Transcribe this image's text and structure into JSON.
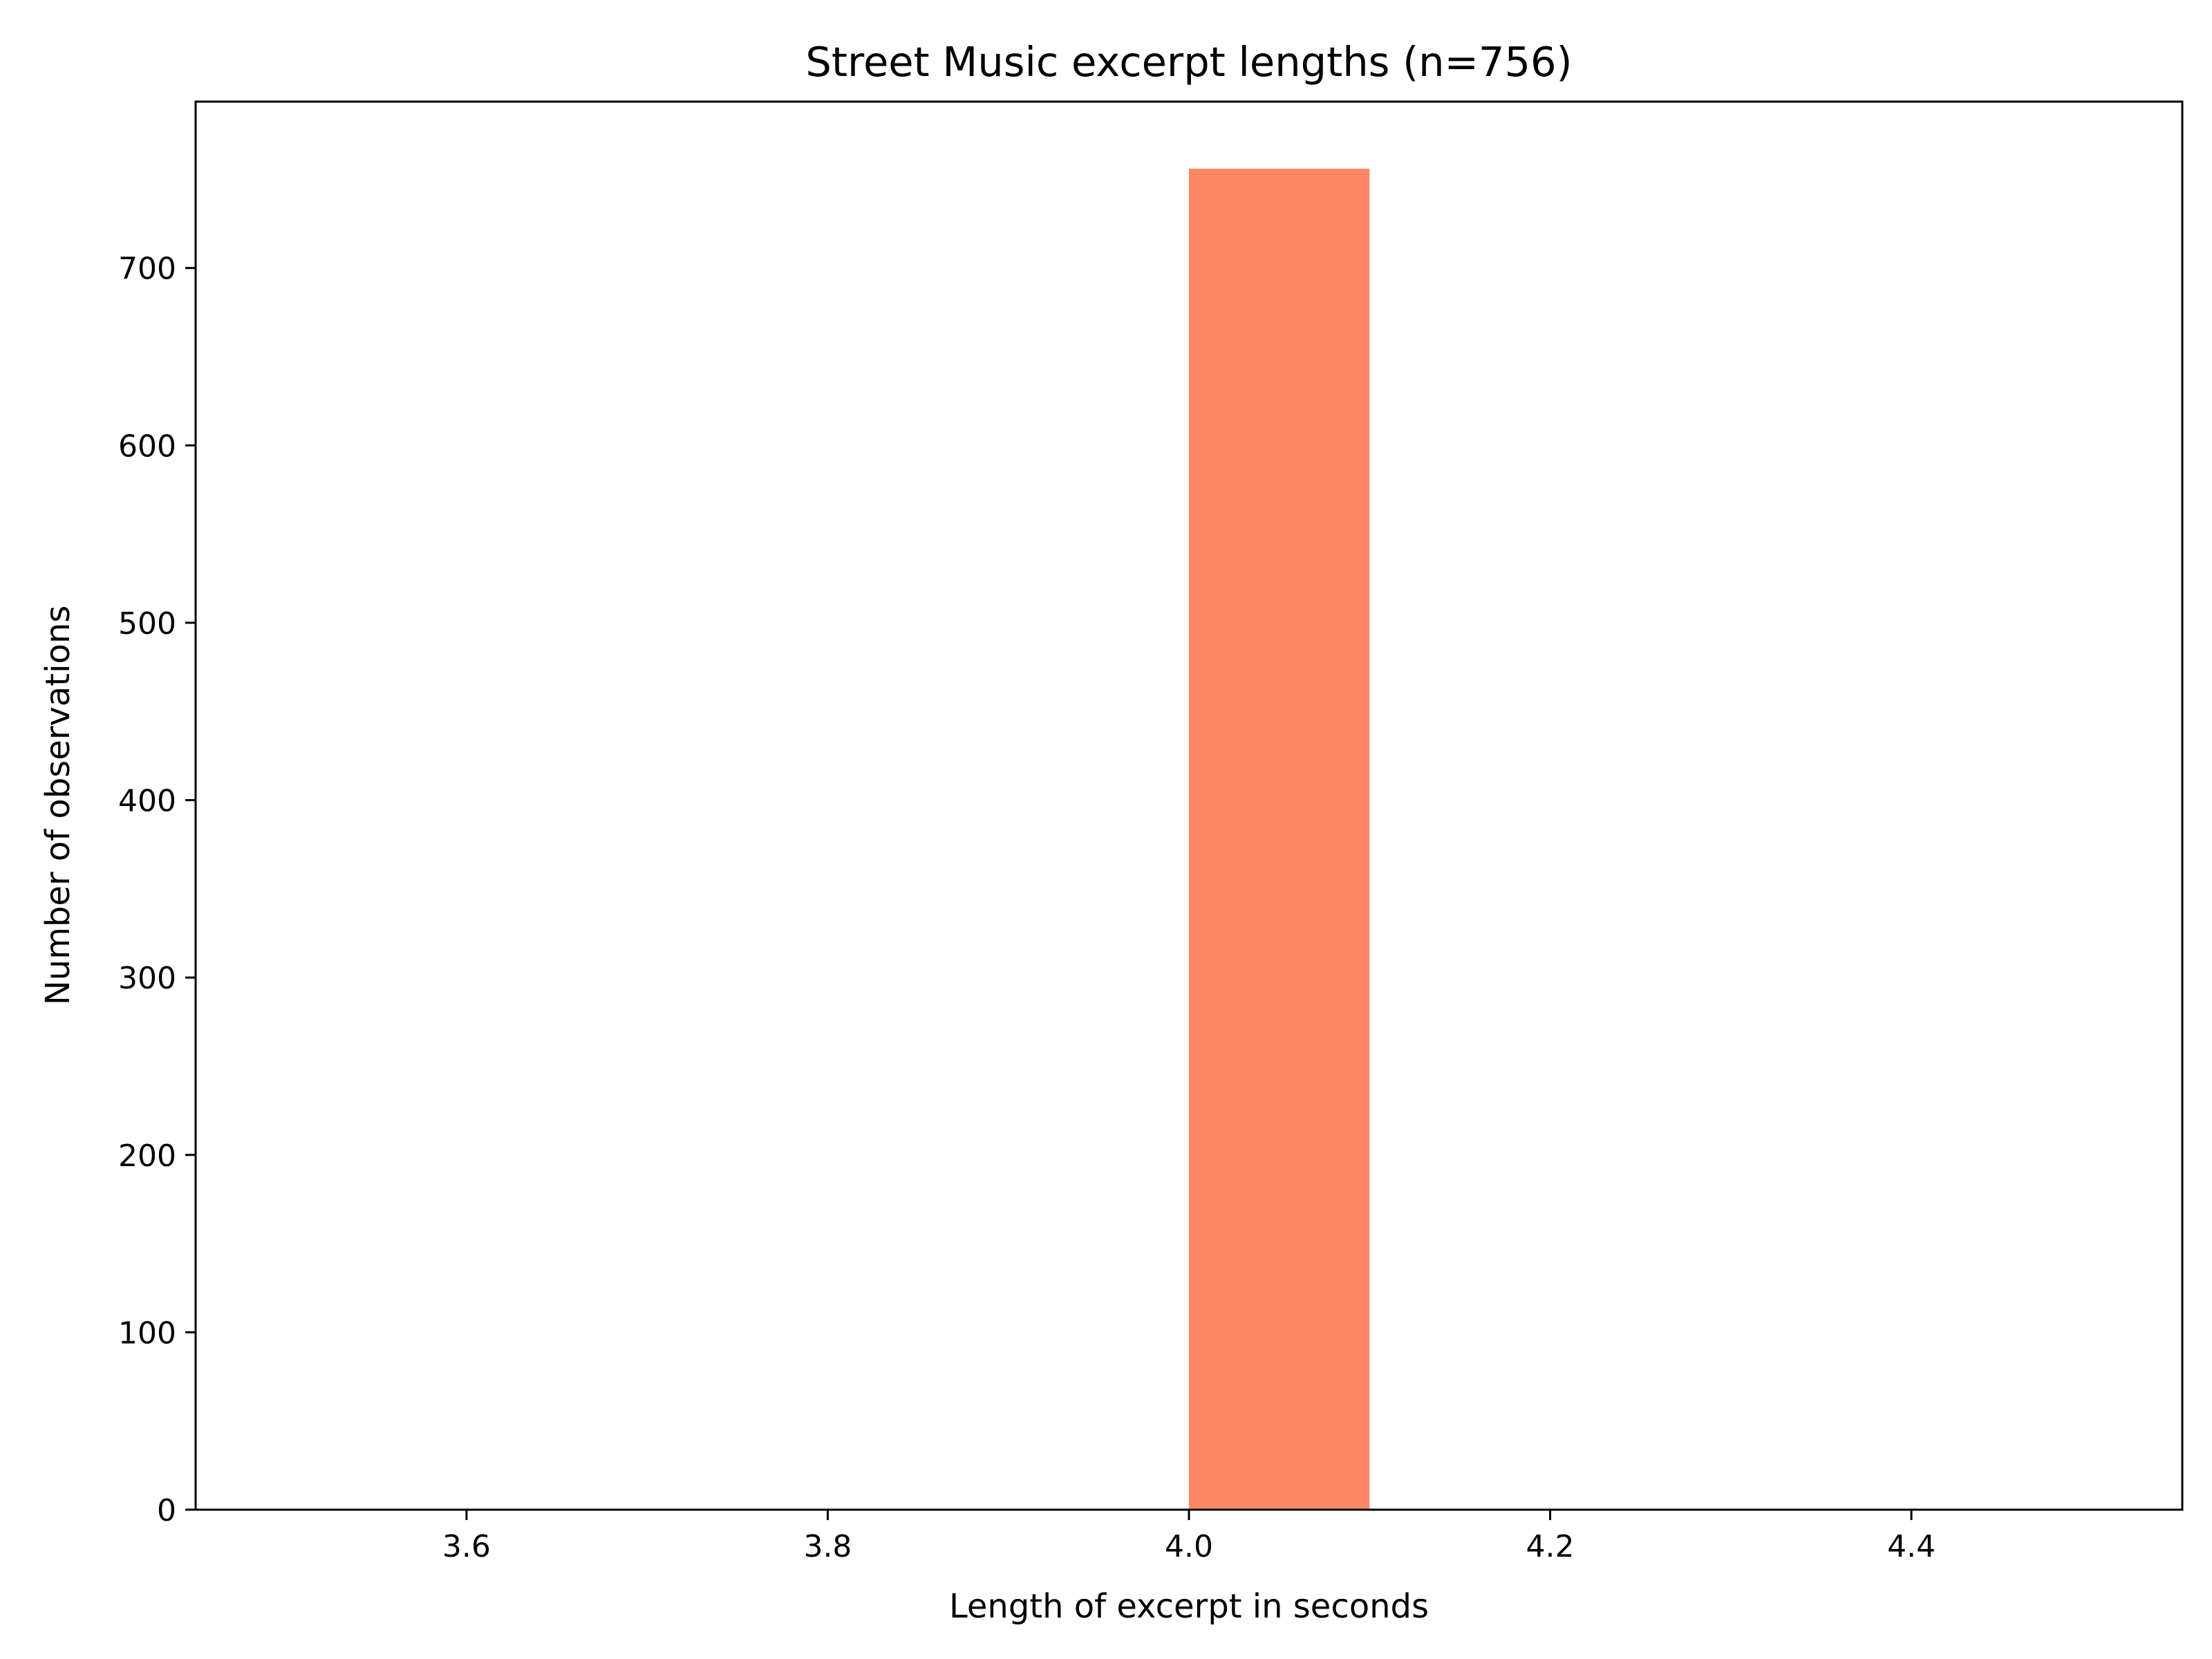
{
  "chart_data": {
    "type": "bar",
    "title": "Street Music excerpt lengths (n=756)",
    "xlabel": "Length of excerpt in seconds",
    "ylabel": "Number of observations",
    "xlim": [
      3.45,
      4.55
    ],
    "ylim": [
      0,
      793.8
    ],
    "xticks": [
      3.6,
      3.8,
      4.0,
      4.2,
      4.4
    ],
    "xtick_labels": [
      "3.6",
      "3.8",
      "4.0",
      "4.2",
      "4.4"
    ],
    "yticks": [
      0,
      100,
      200,
      300,
      400,
      500,
      600,
      700
    ],
    "ytick_labels": [
      "0",
      "100",
      "200",
      "300",
      "400",
      "500",
      "600",
      "700"
    ],
    "bins": [
      {
        "x0": 4.0,
        "x1": 4.1,
        "count": 756
      }
    ],
    "bar_color": "#ff8864",
    "grid": false,
    "legend": "none"
  }
}
